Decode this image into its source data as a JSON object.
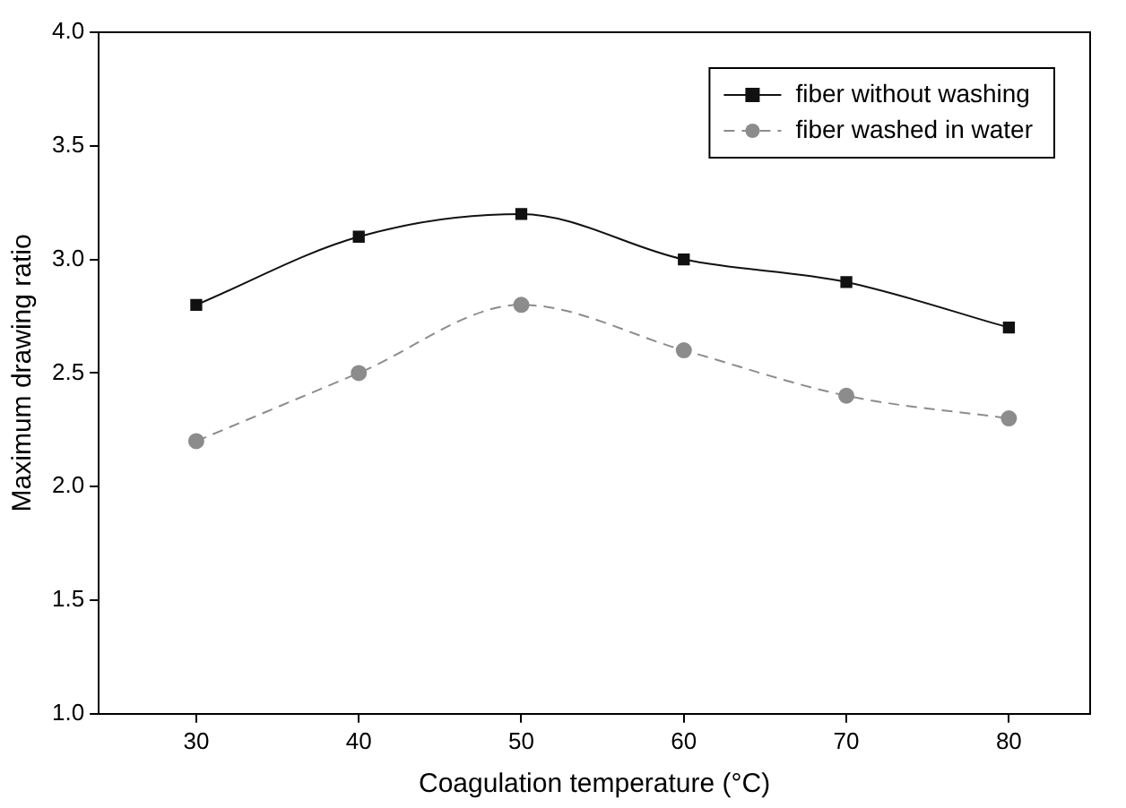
{
  "chart_data": {
    "type": "line",
    "xlabel": "Coagulation temperature (°C)",
    "ylabel": "Maximum drawing ratio",
    "x": [
      30,
      40,
      50,
      60,
      70,
      80
    ],
    "xlim": [
      24,
      85
    ],
    "xticks": [
      30,
      40,
      50,
      60,
      70,
      80
    ],
    "ylim": [
      1.0,
      4.0
    ],
    "yticks": [
      {
        "value": 1.0,
        "label": "1.0"
      },
      {
        "value": 1.5,
        "label": "1.5"
      },
      {
        "value": 2.0,
        "label": "2.0"
      },
      {
        "value": 2.5,
        "label": "2.5"
      },
      {
        "value": 3.0,
        "label": "3.0"
      },
      {
        "value": 3.5,
        "label": "3.5"
      },
      {
        "value": 4.0,
        "label": "4.0"
      }
    ],
    "grid": false,
    "legend": "top right",
    "series": [
      {
        "name": "fiber without washing",
        "color": "#111111",
        "marker": "square",
        "line_style": "solid",
        "values": [
          2.8,
          3.1,
          3.2,
          3.0,
          2.9,
          2.7
        ]
      },
      {
        "name": "fiber washed in water",
        "color": "#8c8c8c",
        "marker": "circle",
        "line_style": "dashed",
        "values": [
          2.2,
          2.5,
          2.8,
          2.6,
          2.4,
          2.3
        ]
      }
    ]
  }
}
